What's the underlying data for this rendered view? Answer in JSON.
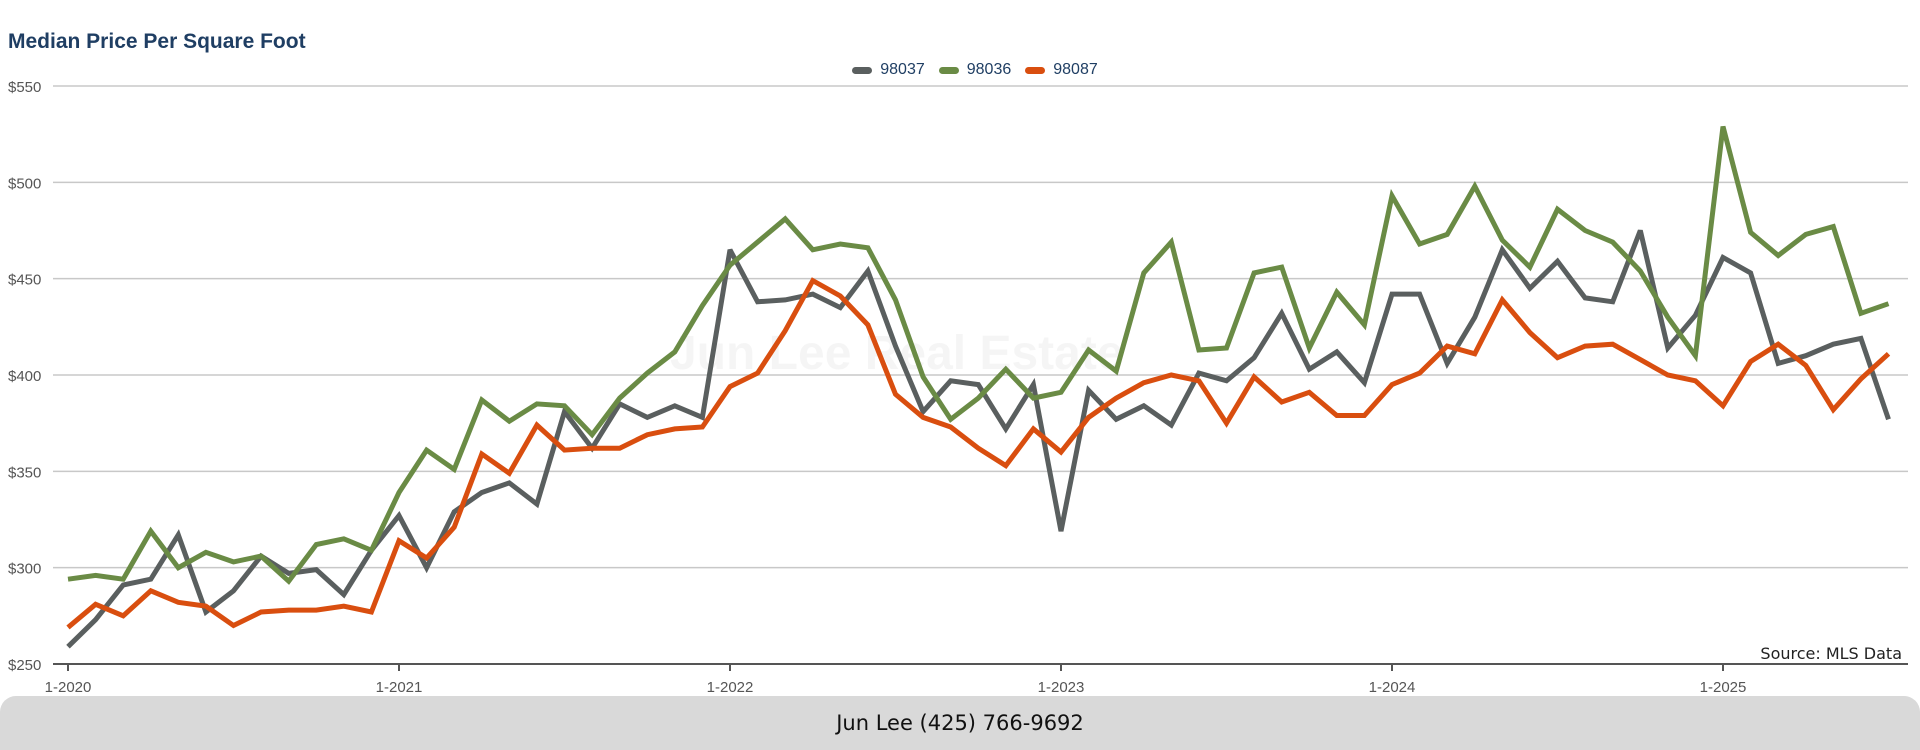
{
  "footer": {
    "contact": "Jun Lee (425) 766-9692"
  },
  "watermark": "Jun Lee Real Estate",
  "chart_data": {
    "type": "line",
    "title": "Median Price Per Square Foot",
    "source_note": "Source: MLS Data",
    "xlabel": "",
    "ylabel": "",
    "x_ticks": [
      "1-2020",
      "1-2021",
      "1-2022",
      "1-2023",
      "1-2024",
      "1-2025"
    ],
    "y_ticks": [
      "$250",
      "$300",
      "$350",
      "$400",
      "$450",
      "$500",
      "$550"
    ],
    "ylim": [
      250,
      550
    ],
    "x_range": [
      "1-2020",
      "7-2025"
    ],
    "x_unit": "monthly",
    "grid": "horizontal",
    "legend_position": "top-center",
    "series": [
      {
        "name": "98037",
        "color": "#5a5f5f",
        "values": [
          259,
          273,
          291,
          294,
          317,
          277,
          288,
          306,
          297,
          299,
          286,
          309,
          327,
          300,
          329,
          339,
          344,
          333,
          381,
          362,
          385,
          378,
          384,
          378,
          465,
          438,
          439,
          442,
          435,
          454,
          415,
          381,
          397,
          395,
          372,
          395,
          319,
          392,
          377,
          384,
          374,
          401,
          397,
          409,
          432,
          403,
          412,
          396,
          442,
          442,
          406,
          430,
          465,
          445,
          459,
          440,
          438,
          475,
          414,
          431,
          461,
          453,
          406,
          410,
          416,
          419,
          377
        ]
      },
      {
        "name": "98036",
        "color": "#6a8b45",
        "values": [
          294,
          296,
          294,
          319,
          300,
          308,
          303,
          306,
          293,
          312,
          315,
          309,
          339,
          361,
          351,
          387,
          376,
          385,
          384,
          369,
          388,
          401,
          412,
          436,
          457,
          469,
          481,
          465,
          468,
          466,
          439,
          399,
          377,
          388,
          403,
          388,
          391,
          413,
          402,
          453,
          469,
          413,
          414,
          453,
          456,
          414,
          443,
          426,
          493,
          468,
          473,
          498,
          470,
          456,
          486,
          475,
          469,
          454,
          430,
          410,
          529,
          474,
          462,
          473,
          477,
          432,
          437
        ]
      },
      {
        "name": "98087",
        "color": "#d94e0f",
        "values": [
          269,
          281,
          275,
          288,
          282,
          280,
          270,
          277,
          278,
          278,
          280,
          277,
          314,
          305,
          321,
          359,
          349,
          374,
          361,
          362,
          362,
          369,
          372,
          373,
          394,
          401,
          423,
          449,
          441,
          426,
          390,
          378,
          373,
          362,
          353,
          372,
          360,
          378,
          388,
          396,
          400,
          397,
          375,
          399,
          386,
          391,
          379,
          379,
          395,
          401,
          415,
          411,
          439,
          422,
          409,
          415,
          416,
          408,
          400,
          397,
          384,
          407,
          416,
          405,
          382,
          398,
          411
        ]
      }
    ]
  }
}
